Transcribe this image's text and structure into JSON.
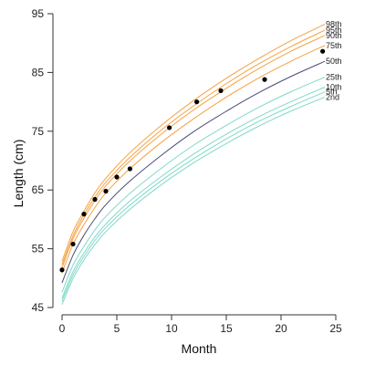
{
  "chart_data": {
    "type": "line",
    "xlabel": "Month",
    "ylabel": "Length (cm)",
    "xlim": [
      0,
      25
    ],
    "ylim": [
      45,
      95
    ],
    "x_ticks": [
      0,
      5,
      10,
      15,
      20,
      25
    ],
    "y_ticks": [
      45,
      55,
      65,
      75,
      85,
      95
    ],
    "grid": false,
    "colors": {
      "upper": "#f5a142",
      "median": "#4b4b7a",
      "lower": "#7fd9c9",
      "points": "#000000"
    },
    "series": [
      {
        "name": "98th",
        "group": "upper",
        "x": [
          0,
          1,
          2,
          3,
          4,
          6,
          9,
          12,
          15,
          18,
          21,
          24
        ],
        "y": [
          52.9,
          57.9,
          61.4,
          64.5,
          67.0,
          71.0,
          75.9,
          80.2,
          84.0,
          87.4,
          90.5,
          93.2
        ]
      },
      {
        "name": "95th",
        "group": "upper",
        "x": [
          0,
          1,
          2,
          3,
          4,
          6,
          9,
          12,
          15,
          18,
          21,
          24
        ],
        "y": [
          52.3,
          57.2,
          60.8,
          63.8,
          66.3,
          70.2,
          75.1,
          79.3,
          83.1,
          86.5,
          89.5,
          92.2
        ]
      },
      {
        "name": "90th",
        "group": "upper",
        "x": [
          0,
          1,
          2,
          3,
          4,
          6,
          9,
          12,
          15,
          18,
          21,
          24
        ],
        "y": [
          51.8,
          56.7,
          60.2,
          63.2,
          65.7,
          69.6,
          74.4,
          78.6,
          82.3,
          85.7,
          88.7,
          91.3
        ]
      },
      {
        "name": "75th",
        "group": "upper",
        "x": [
          0,
          1,
          2,
          3,
          4,
          6,
          9,
          12,
          15,
          18,
          21,
          24
        ],
        "y": [
          50.9,
          55.7,
          59.1,
          62.0,
          64.5,
          68.3,
          73.0,
          77.1,
          80.8,
          84.1,
          87.0,
          89.6
        ]
      },
      {
        "name": "50th",
        "group": "median",
        "x": [
          0,
          1,
          2,
          3,
          4,
          6,
          9,
          12,
          15,
          18,
          21,
          24
        ],
        "y": [
          49.2,
          53.9,
          57.3,
          60.1,
          62.5,
          66.2,
          70.8,
          74.9,
          78.4,
          81.6,
          84.4,
          86.9
        ]
      },
      {
        "name": "25th",
        "group": "lower",
        "x": [
          0,
          1,
          2,
          3,
          4,
          6,
          9,
          12,
          15,
          18,
          21,
          24
        ],
        "y": [
          47.6,
          52.2,
          55.4,
          58.2,
          60.5,
          64.1,
          68.6,
          72.6,
          76.0,
          79.1,
          81.8,
          84.2
        ]
      },
      {
        "name": "10th",
        "group": "lower",
        "x": [
          0,
          1,
          2,
          3,
          4,
          6,
          9,
          12,
          15,
          18,
          21,
          24
        ],
        "y": [
          46.6,
          51.1,
          54.3,
          57.0,
          59.2,
          62.8,
          67.2,
          71.1,
          74.5,
          77.5,
          80.1,
          82.5
        ]
      },
      {
        "name": "5th",
        "group": "lower",
        "x": [
          0,
          1,
          2,
          3,
          4,
          6,
          9,
          12,
          15,
          18,
          21,
          24
        ],
        "y": [
          46.1,
          50.5,
          53.7,
          56.4,
          58.6,
          62.1,
          66.5,
          70.3,
          73.7,
          76.7,
          79.3,
          81.7
        ]
      },
      {
        "name": "2nd",
        "group": "lower",
        "x": [
          0,
          1,
          2,
          3,
          4,
          6,
          9,
          12,
          15,
          18,
          21,
          24
        ],
        "y": [
          45.5,
          49.9,
          53.1,
          55.7,
          57.9,
          61.4,
          65.8,
          69.6,
          72.9,
          75.9,
          78.5,
          80.8
        ]
      }
    ],
    "points": {
      "x": [
        0,
        1,
        2,
        3,
        4,
        5,
        6.2,
        9.8,
        12.3,
        14.5,
        18.5,
        23.8
      ],
      "y": [
        51.4,
        55.8,
        60.9,
        63.4,
        64.8,
        67.2,
        68.6,
        75.6,
        80.0,
        81.9,
        83.8,
        88.6
      ]
    }
  }
}
